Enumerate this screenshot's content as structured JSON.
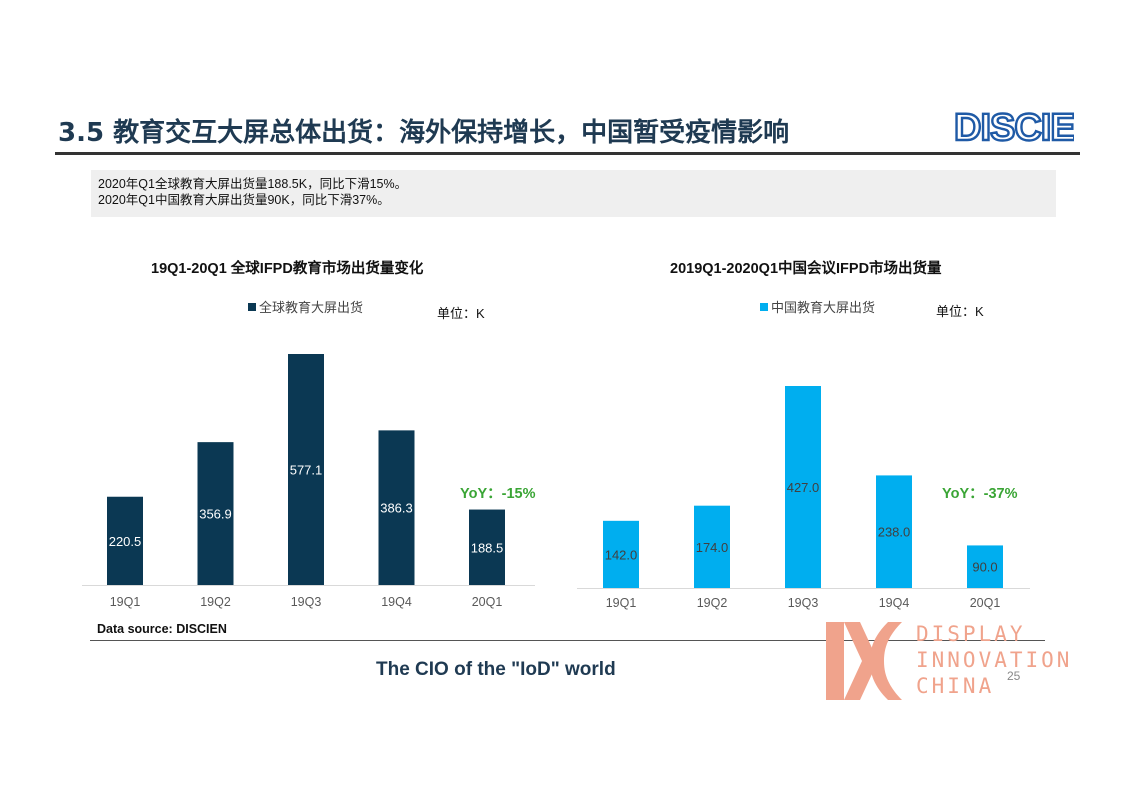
{
  "header": {
    "title": "3.5 教育交互大屏总体出货：海外保持增长，中国暂受疫情影响",
    "logo_text": "DISCIEN"
  },
  "summary": {
    "line1": "2020年Q1全球教育大屏出货量188.5K，同比下滑15%。",
    "line2": "2020年Q1中国教育大屏出货量90K，同比下滑37%。"
  },
  "chart_data": [
    {
      "type": "bar",
      "title": "19Q1-20Q1 全球IFPD教育市场出货量变化",
      "unit_label": "单位：K",
      "categories": [
        "19Q1",
        "19Q2",
        "19Q3",
        "19Q4",
        "20Q1"
      ],
      "series": [
        {
          "name": "全球教育大屏出货",
          "values": [
            220.5,
            356.9,
            577.1,
            386.3,
            188.5
          ]
        }
      ],
      "value_labels": [
        "220.5",
        "356.9",
        "577.1",
        "386.3",
        "188.5"
      ],
      "annotation": "YoY：-15%",
      "color": "#0b3853",
      "label_color": "#ffffff",
      "ylim": [
        0,
        577.1
      ],
      "grid": false,
      "legend_position": "top"
    },
    {
      "type": "bar",
      "title": "2019Q1-2020Q1中国会议IFPD市场出货量",
      "unit_label": "单位：K",
      "categories": [
        "19Q1",
        "19Q2",
        "19Q3",
        "19Q4",
        "20Q1"
      ],
      "series": [
        {
          "name": "中国教育大屏出货",
          "values": [
            142.0,
            174.0,
            427.0,
            238.0,
            90.0
          ]
        }
      ],
      "value_labels": [
        "142.0",
        "174.0",
        "427.0",
        "238.0",
        "90.0"
      ],
      "annotation": "YoY：-37%",
      "color": "#00aeef",
      "label_color": "#404040",
      "ylim": [
        0,
        427.0
      ],
      "grid": false,
      "legend_position": "top"
    }
  ],
  "footer": {
    "source": "Data source: DISCIEN",
    "tagline": "The CIO of the \"IoD\" world",
    "page_number": "25",
    "brand_lines": [
      "DISPLAY",
      "INNOVATION",
      "CHINA"
    ]
  },
  "colors": {
    "title": "#1f3a52",
    "yoy": "#3aa535",
    "brand": "#f0a38c"
  }
}
